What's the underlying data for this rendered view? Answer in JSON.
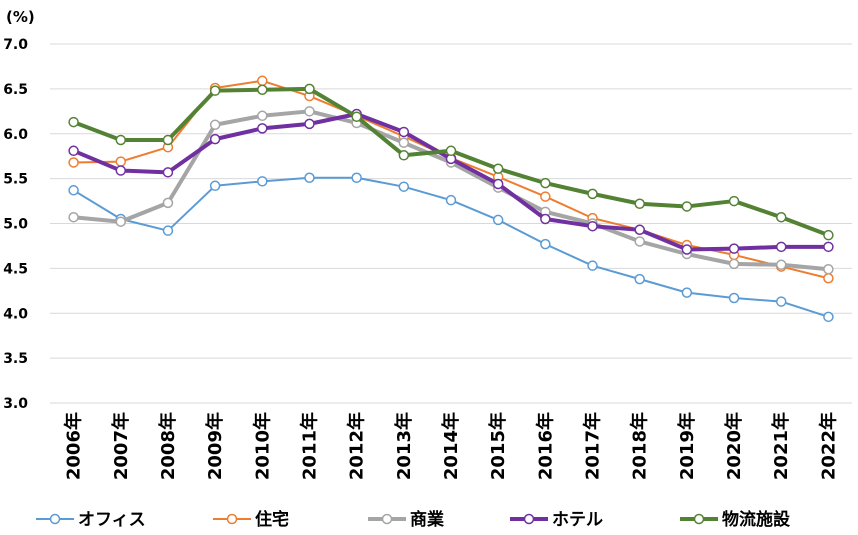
{
  "chart_data": {
    "type": "line",
    "unit_label": "(%)",
    "categories": [
      "2006年",
      "2007年",
      "2008年",
      "2009年",
      "2010年",
      "2011年",
      "2012年",
      "2013年",
      "2014年",
      "2015年",
      "2016年",
      "2017年",
      "2018年",
      "2019年",
      "2020年",
      "2021年",
      "2022年"
    ],
    "ylim": [
      3.0,
      7.0
    ],
    "yticks": [
      "3.0",
      "3.5",
      "4.0",
      "4.5",
      "5.0",
      "5.5",
      "6.0",
      "6.5",
      "7.0"
    ],
    "grid": true,
    "legend_position": "bottom",
    "series": [
      {
        "name": "オフィス",
        "color": "#5b9bd5",
        "width": 2,
        "values": [
          5.37,
          5.05,
          4.92,
          5.42,
          5.47,
          5.51,
          5.51,
          5.41,
          5.26,
          5.04,
          4.77,
          4.53,
          4.38,
          4.23,
          4.17,
          4.13,
          3.96
        ]
      },
      {
        "name": "住宅",
        "color": "#ed7d31",
        "width": 2,
        "values": [
          5.68,
          5.69,
          5.85,
          6.51,
          6.59,
          6.42,
          6.2,
          5.97,
          5.73,
          5.52,
          5.3,
          5.06,
          4.93,
          4.76,
          4.65,
          4.52,
          4.39
        ]
      },
      {
        "name": "商業",
        "color": "#a5a5a5",
        "width": 4,
        "values": [
          5.07,
          5.02,
          5.23,
          6.1,
          6.2,
          6.25,
          6.12,
          5.9,
          5.68,
          5.4,
          5.13,
          5.0,
          4.8,
          4.66,
          4.55,
          4.54,
          4.49
        ]
      },
      {
        "name": "ホテル",
        "color": "#7030a0",
        "width": 4,
        "values": [
          5.81,
          5.59,
          5.57,
          5.94,
          6.06,
          6.11,
          6.22,
          6.02,
          5.72,
          5.44,
          5.05,
          4.97,
          4.93,
          4.71,
          4.72,
          4.74,
          4.74
        ]
      },
      {
        "name": "物流施設",
        "color": "#548235",
        "width": 4,
        "values": [
          6.13,
          5.93,
          5.93,
          6.48,
          6.49,
          6.5,
          6.19,
          5.76,
          5.81,
          5.61,
          5.45,
          5.33,
          5.22,
          5.19,
          5.25,
          5.07,
          4.87
        ]
      }
    ]
  }
}
